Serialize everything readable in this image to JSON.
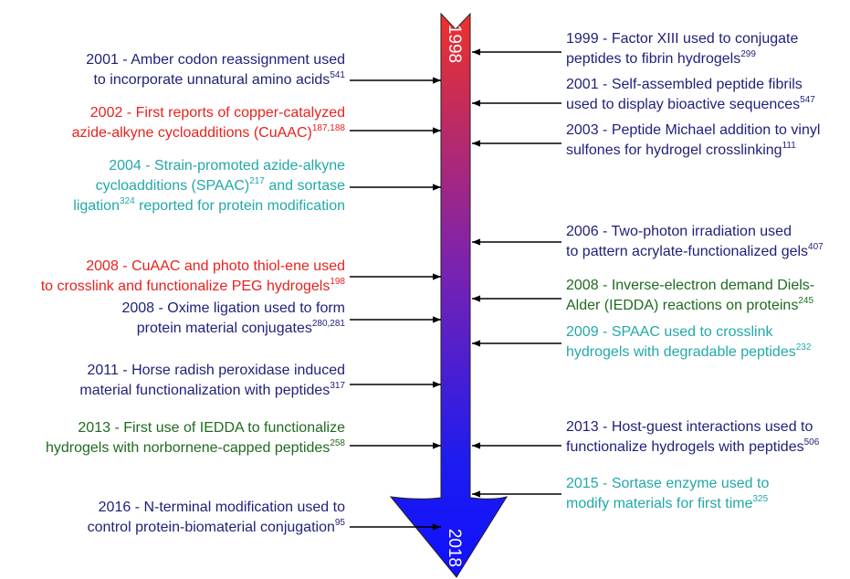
{
  "timeline": {
    "start": "1998",
    "end": "2018",
    "left": [
      {
        "color": "#1f1f7a",
        "lines": [
          [
            "2001 - Amber codon reassignment used"
          ],
          [
            "to incorporate unnatural amino acids",
            {
              "sup": "541"
            }
          ]
        ]
      },
      {
        "color": "#e8221e",
        "lines": [
          [
            "2002 - First reports of copper-catalyzed"
          ],
          [
            "azide-alkyne cycloadditions (CuAAC)",
            {
              "sup": "187,188"
            }
          ]
        ]
      },
      {
        "color": "#22a8a8",
        "lines": [
          [
            "2004 - Strain-promoted azide-alkyne"
          ],
          [
            "cycloadditions (SPAAC)",
            {
              "sup": "217"
            },
            " and sortase"
          ],
          [
            "ligation",
            {
              "sup": "324"
            },
            " reported for protein modification"
          ]
        ]
      },
      {
        "color": "#e8221e",
        "lines": [
          [
            "2008 - CuAAC and photo thiol-ene used"
          ],
          [
            "to crosslink and functionalize PEG hydrogels",
            {
              "sup": "198"
            }
          ]
        ]
      },
      {
        "color": "#1f1f7a",
        "lines": [
          [
            "2008 - Oxime ligation used to form"
          ],
          [
            "protein material conjugates",
            {
              "sup": "280,281"
            }
          ]
        ]
      },
      {
        "color": "#1f1f7a",
        "lines": [
          [
            "2011 - Horse radish peroxidase induced"
          ],
          [
            "material functionalization with peptides",
            {
              "sup": "317"
            }
          ]
        ]
      },
      {
        "color": "#1e6b1e",
        "lines": [
          [
            "2013 - First use of IEDDA to functionalize"
          ],
          [
            "hydrogels with norbornene-capped peptides",
            {
              "sup": "258"
            }
          ]
        ]
      },
      {
        "color": "#1f1f7a",
        "lines": [
          [
            "2016 - N-terminal modification used to"
          ],
          [
            "control protein-biomaterial conjugation",
            {
              "sup": "95"
            }
          ]
        ]
      }
    ],
    "right": [
      {
        "color": "#1f1f7a",
        "lines": [
          [
            "1999 - Factor XIII used to conjugate"
          ],
          [
            "peptides to fibrin hydrogels",
            {
              "sup": "299"
            }
          ]
        ]
      },
      {
        "color": "#1f1f7a",
        "lines": [
          [
            "2001 - Self-assembled peptide fibrils"
          ],
          [
            "used to display bioactive sequences",
            {
              "sup": "547"
            }
          ]
        ]
      },
      {
        "color": "#1f1f7a",
        "lines": [
          [
            "2003 - Peptide Michael addition to vinyl"
          ],
          [
            "sulfones for hydrogel crosslinking",
            {
              "sup": "111"
            }
          ]
        ]
      },
      {
        "color": "#1f1f7a",
        "lines": [
          [
            "2006 - Two-photon irradiation used"
          ],
          [
            "to pattern acrylate-functionalized gels",
            {
              "sup": "407"
            }
          ]
        ]
      },
      {
        "color": "#1e6b1e",
        "lines": [
          [
            "2008 - Inverse-electron demand Diels-"
          ],
          [
            "Alder (IEDDA) reactions on proteins",
            {
              "sup": "245"
            }
          ]
        ]
      },
      {
        "color": "#22a8a8",
        "lines": [
          [
            "2009 - SPAAC used to crosslink"
          ],
          [
            "hydrogels with degradable peptides",
            {
              "sup": "232"
            }
          ]
        ]
      },
      {
        "color": "#1f1f7a",
        "lines": [
          [
            "2013 - Host-guest interactions used to"
          ],
          [
            "functionalize hydrogels with peptides",
            {
              "sup": "506"
            }
          ]
        ]
      },
      {
        "color": "#22a8a8",
        "lines": [
          [
            "2015 - Sortase enzyme used to"
          ],
          [
            "modify materials for first time",
            {
              "sup": "325"
            }
          ]
        ]
      }
    ]
  }
}
